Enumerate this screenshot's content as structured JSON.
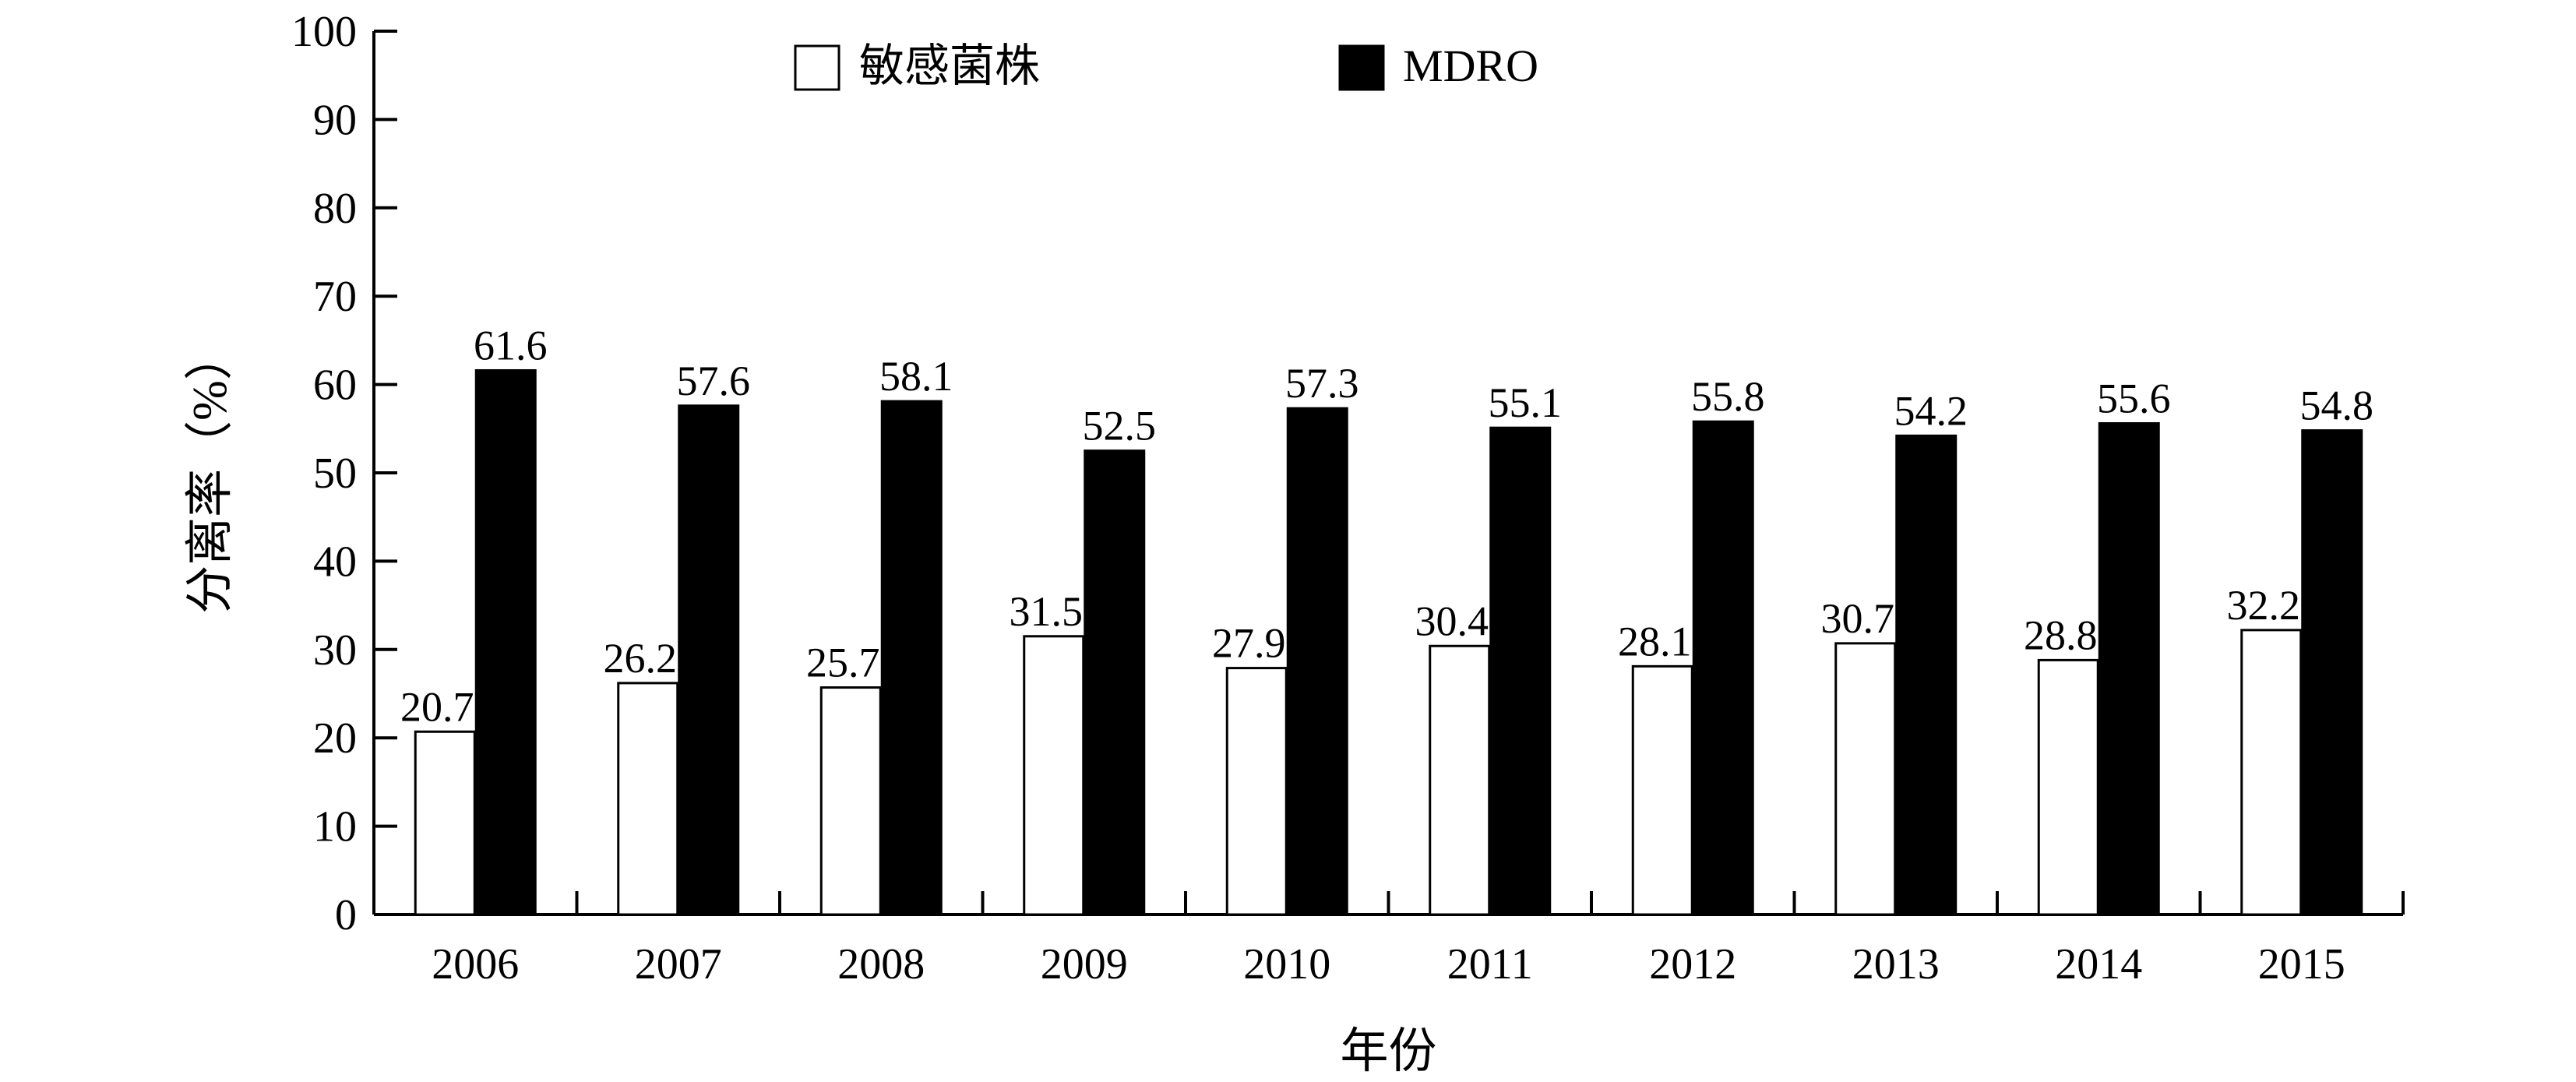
{
  "chart_data": {
    "type": "bar",
    "categories": [
      "2006",
      "2007",
      "2008",
      "2009",
      "2010",
      "2011",
      "2012",
      "2013",
      "2014",
      "2015"
    ],
    "series": [
      {
        "name": "敏感菌株",
        "values": [
          20.7,
          26.2,
          25.7,
          31.5,
          27.9,
          30.4,
          28.1,
          30.7,
          28.8,
          32.2
        ],
        "labels": [
          "20.7",
          "26.2",
          "25.7",
          "31.5",
          "27.9",
          "30.4",
          "28.1",
          "30.7",
          "28.8",
          "32.2"
        ],
        "fill": "#ffffff",
        "stroke": "#000000"
      },
      {
        "name": "MDRO",
        "values": [
          61.6,
          57.6,
          58.1,
          52.5,
          57.3,
          55.1,
          55.8,
          54.2,
          55.6,
          54.8
        ],
        "labels": [
          "61.6",
          "57.6",
          "58.1",
          "52.5",
          "57.3",
          "55.1",
          "55.8",
          "54.2",
          "55.6",
          "54.8"
        ],
        "fill": "#000000",
        "stroke": "#000000"
      }
    ],
    "xlabel": "年份",
    "ylabel": "分离率（%）",
    "ylim": [
      0,
      100
    ],
    "yticks": [
      "0",
      "10",
      "20",
      "30",
      "40",
      "50",
      "60",
      "70",
      "80",
      "90",
      "100"
    ],
    "grid": false,
    "legend_position": "top"
  }
}
